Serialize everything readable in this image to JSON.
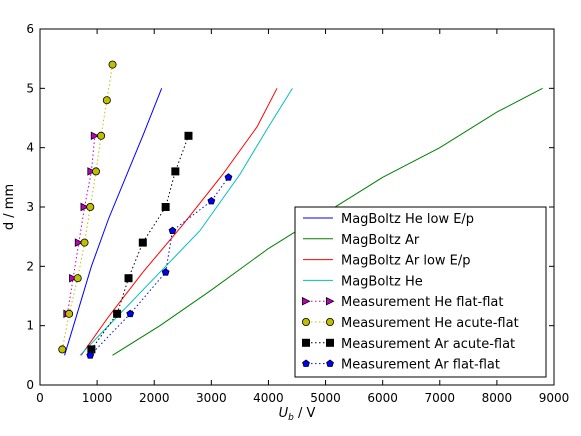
{
  "chart_data": {
    "type": "line",
    "xlabel_main": "U",
    "xlabel_sub": "b",
    "xlabel_tail": " / V",
    "ylabel": "d / mm",
    "xlim": [
      0,
      9000
    ],
    "ylim": [
      0,
      6
    ],
    "xticks": [
      0,
      1000,
      2000,
      3000,
      4000,
      5000,
      6000,
      7000,
      8000,
      9000
    ],
    "yticks": [
      0,
      1,
      2,
      3,
      4,
      5,
      6
    ],
    "grid": false,
    "legend_position": "lower-right",
    "series": [
      {
        "name": "MagBoltz He low E/p",
        "color": "#0000ff",
        "style": "solid",
        "marker": "none",
        "x": [
          430,
          650,
          900,
          1200,
          1500,
          1800,
          2130
        ],
        "y": [
          0.5,
          1.2,
          2.0,
          2.8,
          3.5,
          4.2,
          5.0
        ]
      },
      {
        "name": "MagBoltz Ar",
        "color": "#008000",
        "style": "solid",
        "marker": "none",
        "x": [
          1270,
          2100,
          3000,
          4000,
          5000,
          6000,
          7000,
          8000,
          8800
        ],
        "y": [
          0.5,
          1.0,
          1.6,
          2.3,
          2.9,
          3.5,
          4.0,
          4.6,
          5.0
        ]
      },
      {
        "name": "MagBoltz Ar low E/p",
        "color": "#ff0000",
        "style": "solid",
        "marker": "none",
        "x": [
          720,
          1200,
          1800,
          2500,
          3200,
          3800,
          4150
        ],
        "y": [
          0.5,
          1.15,
          1.9,
          2.7,
          3.55,
          4.35,
          5.0
        ]
      },
      {
        "name": "MagBoltz He",
        "color": "#00bfbf",
        "style": "solid",
        "marker": "none",
        "x": [
          700,
          1300,
          2000,
          2800,
          3500,
          4000,
          4420
        ],
        "y": [
          0.5,
          1.1,
          1.8,
          2.6,
          3.55,
          4.35,
          5.0
        ]
      },
      {
        "name": "Measurement He flat-flat",
        "color": "#bf00bf",
        "style": "dotted",
        "marker": "triangle-right",
        "x": [
          480,
          580,
          680,
          780,
          900,
          960
        ],
        "y": [
          1.2,
          1.8,
          2.4,
          3.0,
          3.6,
          4.2
        ]
      },
      {
        "name": "Measurement He acute-flat",
        "color": "#bfbf00",
        "style": "dotted",
        "marker": "circle",
        "x": [
          390,
          510,
          660,
          780,
          880,
          980,
          1070,
          1170,
          1270
        ],
        "y": [
          0.6,
          1.2,
          1.8,
          2.4,
          3.0,
          3.6,
          4.2,
          4.8,
          5.4
        ]
      },
      {
        "name": "Measurement Ar acute-flat",
        "color": "#000000",
        "style": "dotted",
        "marker": "square",
        "x": [
          900,
          1350,
          1550,
          1800,
          2200,
          2370,
          2600
        ],
        "y": [
          0.6,
          1.2,
          1.8,
          2.4,
          3.0,
          3.6,
          4.2
        ]
      },
      {
        "name": "Measurement Ar flat-flat",
        "color": "#0000ff",
        "style": "dotted",
        "marker": "pentagon",
        "x": [
          880,
          1580,
          2200,
          2320,
          3000,
          3300
        ],
        "y": [
          0.5,
          1.2,
          1.9,
          2.6,
          3.1,
          3.5
        ]
      }
    ]
  }
}
